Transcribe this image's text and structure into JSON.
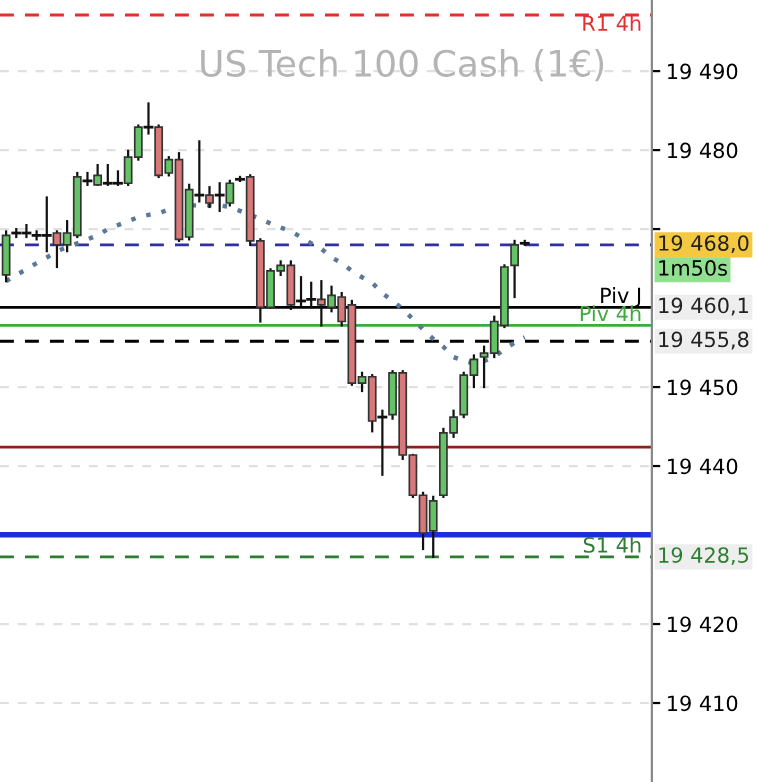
{
  "chart_data": {
    "type": "candlestick",
    "title": "US Tech 100 Cash (1€)",
    "categories": [
      null,
      null,
      null,
      null,
      null,
      null,
      null,
      null,
      null,
      null,
      null,
      null,
      null,
      null,
      null,
      null,
      null,
      null,
      null,
      null,
      null,
      null,
      null,
      null,
      null,
      null,
      null,
      null,
      null,
      null,
      null,
      null,
      null,
      null,
      null,
      null,
      null,
      null,
      null,
      null,
      null,
      null,
      null,
      null,
      null,
      null,
      null,
      null,
      null,
      null,
      null,
      null
    ],
    "ohlc": [
      [
        19464.2,
        19469.7,
        19463.4,
        19469.2
      ],
      [
        19469.5,
        19470.0,
        19469.0,
        19469.5
      ],
      [
        19469.5,
        19470.5,
        19469.0,
        19469.5
      ],
      [
        19469.2,
        19469.7,
        19468.7,
        19469.2
      ],
      [
        19469.2,
        19474.0,
        19467.2,
        19469.2
      ],
      [
        19469.5,
        19469.7,
        19465.2,
        19468.0
      ],
      [
        19468.0,
        19471.0,
        19467.2,
        19469.5
      ],
      [
        19469.2,
        19477.1,
        19469.0,
        19476.6
      ],
      [
        19476.1,
        19477.1,
        19475.6,
        19476.1
      ],
      [
        19475.6,
        19478.1,
        19475.6,
        19476.8
      ],
      [
        19475.8,
        19478.1,
        19475.6,
        19475.8
      ],
      [
        19475.8,
        19477.3,
        19475.6,
        19475.8
      ],
      [
        19475.8,
        19479.9,
        19475.6,
        19479.1
      ],
      [
        19479.1,
        19483.1,
        19478.8,
        19482.9
      ],
      [
        19482.9,
        19485.9,
        19482.1,
        19482.9
      ],
      [
        19482.9,
        19483.1,
        19476.6,
        19476.8
      ],
      [
        19477.1,
        19479.1,
        19476.8,
        19478.8
      ],
      [
        19478.8,
        19479.6,
        19468.5,
        19468.7
      ],
      [
        19469.0,
        19475.6,
        19468.7,
        19475.0
      ],
      [
        19474.3,
        19481.1,
        19473.5,
        19474.3
      ],
      [
        19474.3,
        19475.3,
        19472.8,
        19473.3
      ],
      [
        19474.3,
        19475.8,
        19472.3,
        19474.3
      ],
      [
        19473.3,
        19476.1,
        19473.0,
        19475.8
      ],
      [
        19476.3,
        19476.6,
        19476.1,
        19476.3
      ],
      [
        19476.6,
        19476.8,
        19468.0,
        19468.5
      ],
      [
        19468.5,
        19468.7,
        19458.3,
        19460.1
      ],
      [
        19460.1,
        19464.9,
        19460.1,
        19464.7
      ],
      [
        19464.7,
        19465.9,
        19464.2,
        19465.4
      ],
      [
        19465.4,
        19465.9,
        19459.9,
        19460.4
      ],
      [
        19460.9,
        19463.9,
        19460.4,
        19460.9
      ],
      [
        19461.1,
        19463.2,
        19460.1,
        19461.1
      ],
      [
        19461.1,
        19463.4,
        19457.8,
        19460.4
      ],
      [
        19460.1,
        19462.7,
        19459.6,
        19461.6
      ],
      [
        19461.4,
        19461.9,
        19457.8,
        19458.3
      ],
      [
        19460.4,
        19460.9,
        19450.3,
        19450.5
      ],
      [
        19450.5,
        19451.8,
        19449.5,
        19451.3
      ],
      [
        19451.3,
        19451.5,
        19444.4,
        19445.7
      ],
      [
        19446.2,
        19447.0,
        19438.9,
        19446.2
      ],
      [
        19446.5,
        19452.0,
        19446.0,
        19451.8
      ],
      [
        19451.8,
        19452.0,
        19440.9,
        19441.4
      ],
      [
        19441.4,
        19441.4,
        19436.1,
        19436.3
      ],
      [
        19436.3,
        19436.6,
        19429.5,
        19431.5
      ],
      [
        19431.8,
        19436.1,
        19428.5,
        19435.6
      ],
      [
        19436.3,
        19444.7,
        19436.1,
        19444.2
      ],
      [
        19444.2,
        19447.0,
        19443.7,
        19446.2
      ],
      [
        19446.5,
        19451.8,
        19446.2,
        19451.5
      ],
      [
        19451.5,
        19454.0,
        19450.0,
        19453.5
      ],
      [
        19453.8,
        19455.1,
        19450.0,
        19454.3
      ],
      [
        19454.3,
        19458.9,
        19453.8,
        19458.3
      ],
      [
        19457.8,
        19465.4,
        19457.6,
        19465.2
      ],
      [
        19465.4,
        19468.5,
        19461.4,
        19468.0
      ],
      [
        19468.2,
        19468.5,
        19468.0,
        19468.2
      ]
    ],
    "colors": [
      "#66c266",
      "#111111",
      "#111111",
      "#111111",
      "#111111",
      "#d9787a",
      "#66c266",
      "#66c266",
      "#111111",
      "#66c266",
      "#111111",
      "#111111",
      "#66c266",
      "#66c266",
      "#111111",
      "#d9787a",
      "#66c266",
      "#d9787a",
      "#66c266",
      "#111111",
      "#d9787a",
      "#111111",
      "#66c266",
      "#111111",
      "#d9787a",
      "#d9787a",
      "#66c266",
      "#66c266",
      "#d9787a",
      "#111111",
      "#111111",
      "#d9787a",
      "#66c266",
      "#d9787a",
      "#d9787a",
      "#66c266",
      "#d9787a",
      "#111111",
      "#66c266",
      "#d9787a",
      "#d9787a",
      "#d9787a",
      "#66c266",
      "#66c266",
      "#66c266",
      "#66c266",
      "#66c266",
      "#66c266",
      "#66c266",
      "#66c266",
      "#66c266",
      "#111111"
    ],
    "series": [
      {
        "type": "line",
        "color": "#5b7896",
        "line_style": "dotted",
        "values": [
          19463.4,
          19464.2,
          19464.9,
          19465.7,
          19466.4,
          19467.2,
          19467.7,
          19468.2,
          19468.7,
          19469.2,
          19470.0,
          19470.5,
          19471.0,
          19471.5,
          19471.8,
          19472.0,
          19472.5,
          19472.8,
          19473.0,
          19473.0,
          19473.0,
          19473.0,
          19472.8,
          19472.3,
          19471.8,
          19471.3,
          19470.7,
          19470.2,
          19469.7,
          19469.0,
          19468.2,
          19467.5,
          19466.4,
          19465.7,
          19464.7,
          19463.9,
          19463.2,
          19461.9,
          19460.9,
          19459.9,
          19458.6,
          19457.3,
          19456.1,
          19455.1,
          19453.8,
          19453.3,
          19453.0,
          19453.3,
          19453.8,
          19454.8,
          19455.6,
          19456.3
        ]
      }
    ],
    "ylim": [
      19400,
      19499
    ],
    "yticks": [
      {
        "value": 19410,
        "label": "19 410"
      },
      {
        "value": 19420,
        "label": "19 420"
      },
      {
        "value": 19440,
        "label": "19 440"
      },
      {
        "value": 19450,
        "label": "19 450"
      },
      {
        "value": 19470,
        "label": null
      },
      {
        "value": 19480,
        "label": "19 480"
      },
      {
        "value": 19490,
        "label": "19 490"
      }
    ],
    "grid": "y",
    "ref_lines": [
      {
        "axis": "y",
        "value": 19497.1,
        "label": "R1 4h",
        "color": "#e03030",
        "line_style": "dashed"
      },
      {
        "axis": "y",
        "value": 19468.0,
        "color": "#3030a0",
        "line_style": "dashed"
      },
      {
        "axis": "y",
        "value": 19460.1,
        "label": "Piv J",
        "color": "#000000",
        "line_style": "solid"
      },
      {
        "axis": "y",
        "value": 19457.8,
        "label": "Piv 4h",
        "color": "#3cac3c",
        "line_style": "solid"
      },
      {
        "axis": "y",
        "value": 19455.8,
        "color": "#000000",
        "line_style": "dashed"
      },
      {
        "axis": "y",
        "value": 19442.4,
        "color": "#8b2020",
        "line_style": "solid"
      },
      {
        "axis": "y",
        "value": 19431.3,
        "color": "#1a2ee0",
        "line_style": "solid"
      },
      {
        "axis": "y",
        "value": 19428.5,
        "label": "S1 4h",
        "color": "#2e7d32",
        "line_style": "dashed"
      }
    ],
    "annotations": [
      "19 468,0",
      "19 460,1",
      "19 455,8",
      "19 428,5",
      "1m50s"
    ]
  }
}
